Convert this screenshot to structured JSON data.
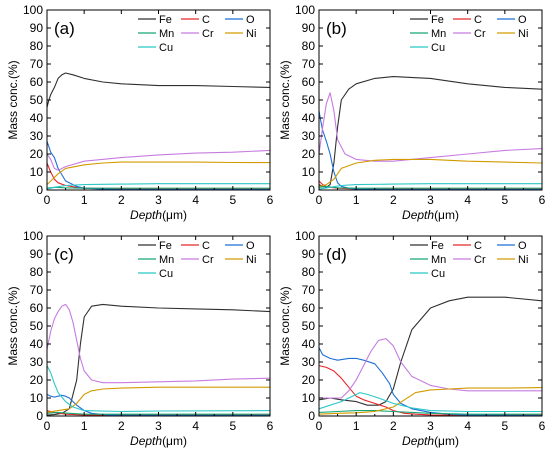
{
  "figure": {
    "ylabel": "Mass conc.(%)",
    "xlabel_italic": "Depth",
    "xlabel_unit": "(μm)"
  },
  "series_styles": [
    {
      "name": "Fe",
      "color": "#303030"
    },
    {
      "name": "C",
      "color": "#e8262a"
    },
    {
      "name": "O",
      "color": "#1f6fd6"
    },
    {
      "name": "Mn",
      "color": "#17a673"
    },
    {
      "name": "Cr",
      "color": "#c77ce0"
    },
    {
      "name": "Ni",
      "color": "#d39a00"
    },
    {
      "name": "Cu",
      "color": "#2cc8c8"
    }
  ],
  "chart_data": [
    {
      "panel": "(a)",
      "type": "line",
      "xlim": [
        0,
        6
      ],
      "ylim": [
        0,
        100
      ],
      "xticks": [
        0,
        1,
        2,
        3,
        4,
        5,
        6
      ],
      "yticks": [
        0,
        10,
        20,
        30,
        40,
        50,
        60,
        70,
        80,
        90,
        100
      ],
      "legend": [
        "Fe",
        "C",
        "O",
        "Mn",
        "Cr",
        "Ni",
        "Cu"
      ],
      "legend_position": "top-right",
      "series": [
        {
          "name": "Fe",
          "x": [
            0,
            0.05,
            0.1,
            0.2,
            0.3,
            0.4,
            0.5,
            0.7,
            1,
            1.5,
            2,
            3,
            4,
            5,
            6
          ],
          "y": [
            46,
            50,
            53,
            57,
            62,
            64,
            65,
            64,
            62,
            60,
            59,
            58,
            58,
            57.5,
            57
          ]
        },
        {
          "name": "C",
          "x": [
            0,
            0.1,
            0.2,
            0.3,
            0.5,
            0.8,
            1,
            2,
            6
          ],
          "y": [
            15,
            10,
            6,
            4,
            2.5,
            1.5,
            1,
            0.8,
            0.5
          ]
        },
        {
          "name": "O",
          "x": [
            0,
            0.05,
            0.1,
            0.2,
            0.3,
            0.5,
            0.8,
            1,
            1.5,
            2,
            6
          ],
          "y": [
            27,
            24,
            21,
            18,
            12,
            5,
            2,
            1,
            0.5,
            0.3,
            0.3
          ]
        },
        {
          "name": "Mn",
          "x": [
            0,
            0.2,
            0.5,
            1,
            2,
            6
          ],
          "y": [
            1,
            1.5,
            1.2,
            1,
            1,
            1
          ]
        },
        {
          "name": "Cr",
          "x": [
            0,
            0.1,
            0.2,
            0.3,
            0.5,
            1,
            2,
            3,
            4,
            5,
            6
          ],
          "y": [
            20,
            17,
            12,
            11,
            13,
            16,
            18,
            19.5,
            20.5,
            21,
            22
          ]
        },
        {
          "name": "Ni",
          "x": [
            0,
            0.1,
            0.3,
            0.5,
            1,
            1.5,
            2,
            3,
            4,
            5,
            6
          ],
          "y": [
            3,
            5,
            9,
            12,
            14,
            15,
            15.5,
            15.5,
            15.5,
            15.3,
            15.2
          ]
        },
        {
          "name": "Cu",
          "x": [
            0,
            0.2,
            0.5,
            1,
            2,
            3,
            6
          ],
          "y": [
            0.5,
            1.5,
            2.5,
            3,
            3.3,
            3.5,
            3.5
          ]
        }
      ]
    },
    {
      "panel": "(b)",
      "type": "line",
      "xlim": [
        0,
        6
      ],
      "ylim": [
        0,
        100
      ],
      "xticks": [
        0,
        1,
        2,
        3,
        4,
        5,
        6
      ],
      "yticks": [
        0,
        10,
        20,
        30,
        40,
        50,
        60,
        70,
        80,
        90,
        100
      ],
      "legend": [
        "Fe",
        "C",
        "O",
        "Mn",
        "Cr",
        "Ni",
        "Cu"
      ],
      "legend_position": "top-right",
      "series": [
        {
          "name": "Fe",
          "x": [
            0,
            0.1,
            0.2,
            0.3,
            0.4,
            0.5,
            0.6,
            0.8,
            1,
            1.5,
            2,
            3,
            4,
            5,
            6
          ],
          "y": [
            3,
            2,
            1.5,
            3,
            15,
            35,
            50,
            56,
            59,
            62,
            63,
            62,
            59,
            57,
            56
          ]
        },
        {
          "name": "C",
          "x": [
            0,
            0.1,
            0.2,
            0.3,
            0.5,
            1,
            6
          ],
          "y": [
            5,
            3,
            2,
            1.5,
            1,
            0.6,
            0.5
          ]
        },
        {
          "name": "O",
          "x": [
            0,
            0.05,
            0.1,
            0.15,
            0.2,
            0.3,
            0.4,
            0.5,
            0.6,
            0.8,
            1,
            2,
            6
          ],
          "y": [
            44,
            38,
            33,
            30,
            27,
            20,
            10,
            4,
            2,
            1,
            0.5,
            0.3,
            0.3
          ]
        },
        {
          "name": "Mn",
          "x": [
            0,
            0.2,
            0.5,
            1,
            6
          ],
          "y": [
            1.5,
            2,
            1.2,
            1,
            1
          ]
        },
        {
          "name": "Cr",
          "x": [
            0,
            0.1,
            0.2,
            0.3,
            0.4,
            0.5,
            0.7,
            1,
            1.5,
            2,
            3,
            4,
            5,
            6
          ],
          "y": [
            20,
            35,
            48,
            54,
            44,
            28,
            20,
            17,
            16,
            16,
            18,
            20,
            22,
            23
          ]
        },
        {
          "name": "Ni",
          "x": [
            0,
            0.2,
            0.4,
            0.6,
            1,
            1.5,
            2,
            3,
            4,
            5,
            6
          ],
          "y": [
            2,
            3,
            6,
            12,
            15,
            16.5,
            17,
            17,
            16,
            15.5,
            15
          ]
        },
        {
          "name": "Cu",
          "x": [
            0,
            0.3,
            0.6,
            1,
            2,
            3,
            6
          ],
          "y": [
            0.5,
            1.5,
            2.5,
            3,
            3.3,
            3.5,
            3.5
          ]
        }
      ]
    },
    {
      "panel": "(c)",
      "type": "line",
      "xlim": [
        0,
        6
      ],
      "ylim": [
        0,
        100
      ],
      "xticks": [
        0,
        1,
        2,
        3,
        4,
        5,
        6
      ],
      "yticks": [
        0,
        10,
        20,
        30,
        40,
        50,
        60,
        70,
        80,
        90,
        100
      ],
      "legend": [
        "Fe",
        "C",
        "O",
        "Mn",
        "Cr",
        "Ni",
        "Cu"
      ],
      "legend_position": "top-right",
      "series": [
        {
          "name": "Fe",
          "x": [
            0,
            0.2,
            0.4,
            0.6,
            0.8,
            0.9,
            1,
            1.2,
            1.5,
            2,
            3,
            4,
            5,
            6
          ],
          "y": [
            0.5,
            0.8,
            1.5,
            4,
            20,
            40,
            55,
            61,
            62,
            61,
            60,
            59.5,
            59,
            58
          ]
        },
        {
          "name": "C",
          "x": [
            0,
            0.2,
            0.5,
            1,
            6
          ],
          "y": [
            3,
            2,
            1,
            0.6,
            0.5
          ]
        },
        {
          "name": "O",
          "x": [
            0,
            0.1,
            0.2,
            0.3,
            0.4,
            0.5,
            0.6,
            0.7,
            0.8,
            1,
            1.2,
            1.5,
            2,
            6
          ],
          "y": [
            12,
            11,
            10.5,
            11,
            11.5,
            11,
            10,
            8,
            6,
            3,
            1.5,
            0.8,
            0.4,
            0.3
          ]
        },
        {
          "name": "Mn",
          "x": [
            0,
            0.3,
            0.6,
            1,
            6
          ],
          "y": [
            1.5,
            2,
            1.5,
            1,
            1
          ]
        },
        {
          "name": "Cr",
          "x": [
            0,
            0.1,
            0.2,
            0.3,
            0.4,
            0.5,
            0.6,
            0.7,
            0.8,
            0.9,
            1,
            1.2,
            1.5,
            2,
            3,
            4,
            5,
            6
          ],
          "y": [
            37,
            47,
            54,
            58,
            61,
            62,
            59,
            52,
            42,
            32,
            25,
            20,
            18.5,
            18.5,
            19,
            19.5,
            20.5,
            21
          ]
        },
        {
          "name": "Ni",
          "x": [
            0,
            0.3,
            0.6,
            0.8,
            1,
            1.2,
            1.5,
            2,
            3,
            4,
            6
          ],
          "y": [
            2,
            3,
            4,
            7,
            12,
            14,
            15,
            15.5,
            16,
            16,
            16
          ]
        },
        {
          "name": "Cu",
          "x": [
            0,
            0.1,
            0.2,
            0.3,
            0.5,
            0.7,
            1,
            2,
            3,
            6
          ],
          "y": [
            28,
            24,
            18,
            13,
            8,
            5,
            3,
            2.5,
            2.8,
            3
          ]
        }
      ]
    },
    {
      "panel": "(d)",
      "type": "line",
      "xlim": [
        0,
        6
      ],
      "ylim": [
        0,
        100
      ],
      "xticks": [
        0,
        1,
        2,
        3,
        4,
        5,
        6
      ],
      "yticks": [
        0,
        10,
        20,
        30,
        40,
        50,
        60,
        70,
        80,
        90,
        100
      ],
      "legend": [
        "Fe",
        "C",
        "O",
        "Mn",
        "Cr",
        "Ni",
        "Cu"
      ],
      "legend_position": "top-right",
      "series": [
        {
          "name": "Fe",
          "x": [
            0,
            0.3,
            0.6,
            1,
            1.3,
            1.6,
            1.8,
            2,
            2.2,
            2.5,
            3,
            3.5,
            4,
            5,
            6
          ],
          "y": [
            9,
            10,
            9,
            8,
            6,
            6,
            8,
            15,
            30,
            48,
            60,
            64,
            66,
            66,
            64
          ]
        },
        {
          "name": "C",
          "x": [
            0,
            0.2,
            0.4,
            0.6,
            0.8,
            1,
            1.2,
            1.5,
            1.8,
            2,
            2.3,
            2.6,
            3,
            6
          ],
          "y": [
            28,
            27,
            25,
            21,
            16,
            11,
            9,
            7,
            5,
            3,
            1.5,
            1,
            0.6,
            0.5
          ]
        },
        {
          "name": "O",
          "x": [
            0,
            0.1,
            0.3,
            0.5,
            0.8,
            1,
            1.2,
            1.5,
            1.7,
            1.9,
            2,
            2.2,
            2.5,
            3,
            3.5,
            4,
            6
          ],
          "y": [
            38,
            34,
            32,
            31,
            32,
            32,
            31,
            29,
            24,
            18,
            12,
            7,
            4,
            2,
            1,
            0.5,
            0.3
          ]
        },
        {
          "name": "Mn",
          "x": [
            0,
            0.5,
            1,
            1.5,
            2,
            2.5,
            3,
            4,
            6
          ],
          "y": [
            2,
            2.5,
            3,
            3,
            2.5,
            2,
            1.5,
            1,
            1
          ]
        },
        {
          "name": "Cr",
          "x": [
            0,
            0.3,
            0.6,
            0.8,
            1,
            1.2,
            1.4,
            1.6,
            1.8,
            2,
            2.2,
            2.5,
            3,
            3.5,
            4,
            5,
            6
          ],
          "y": [
            10,
            10,
            10,
            14,
            20,
            28,
            36,
            42,
            43,
            39,
            30,
            22,
            17,
            15,
            14,
            14,
            14
          ]
        },
        {
          "name": "Ni",
          "x": [
            0,
            0.5,
            1,
            1.5,
            2,
            2.3,
            2.6,
            3,
            3.5,
            4,
            5,
            6
          ],
          "y": [
            1,
            1.5,
            1.8,
            2.5,
            5,
            9,
            13,
            14.5,
            15,
            15.5,
            15.5,
            15.8
          ]
        },
        {
          "name": "Cu",
          "x": [
            0,
            0.3,
            0.6,
            0.9,
            1.1,
            1.3,
            1.6,
            2,
            2.5,
            3,
            4,
            6
          ],
          "y": [
            4,
            6,
            8,
            11,
            13,
            12,
            10,
            7,
            4.5,
            3,
            2.5,
            2.5
          ]
        }
      ]
    }
  ]
}
